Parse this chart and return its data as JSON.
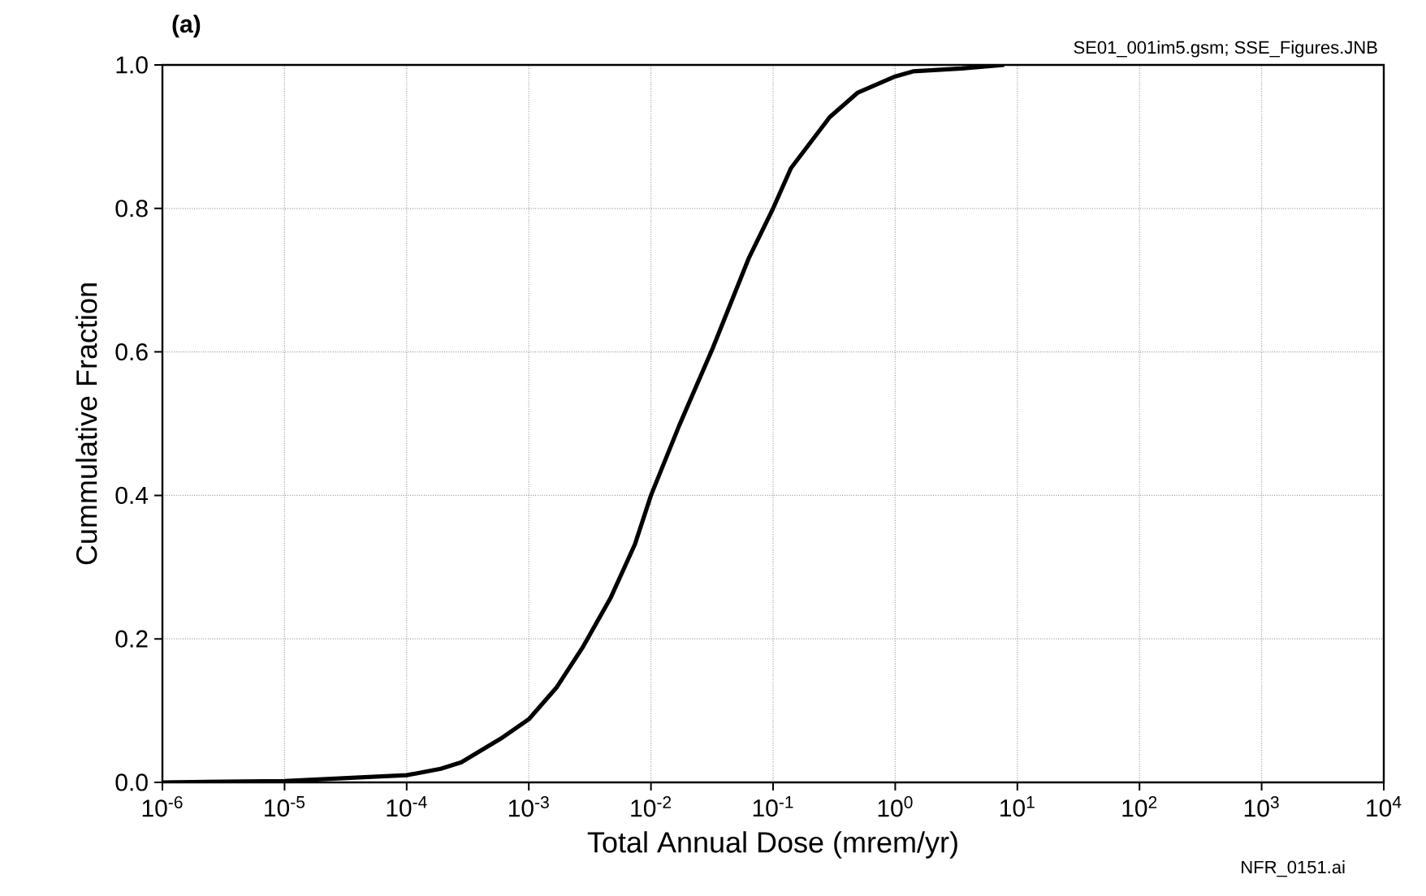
{
  "chart_data": {
    "type": "line",
    "title": "(a)",
    "xlabel": "Total Annual Dose (mrem/yr)",
    "ylabel": "Cummulative Fraction",
    "annotations": [
      "SE01_001im5.gsm; SSE_Figures.JNB",
      "NFR_0151.ai"
    ],
    "log": "x",
    "grid": true,
    "marker": "none",
    "line_style": "solid",
    "xlim": [
      1e-06,
      10000.0
    ],
    "ylim": [
      0,
      1
    ],
    "xticks": [
      {
        "value": 1e-06,
        "label": "10$^{-6}$"
      },
      {
        "value": 1e-05,
        "label": "10$^{-5}$"
      },
      {
        "value": 0.0001,
        "label": "10$^{-4}$"
      },
      {
        "value": 0.001,
        "label": "10$^{-3}$"
      },
      {
        "value": 0.01,
        "label": "10$^{-2}$"
      },
      {
        "value": 0.1,
        "label": "10$^{-1}$"
      },
      {
        "value": 1,
        "label": "10$^{0}$"
      },
      {
        "value": 10,
        "label": "10$^{1}$"
      },
      {
        "value": 100,
        "label": "10$^{2}$"
      },
      {
        "value": 1000,
        "label": "10$^{3}$"
      },
      {
        "value": 10000,
        "label": "10$^{4}$"
      }
    ],
    "yticks": [
      {
        "value": 0,
        "label": "0.0"
      },
      {
        "value": 0.2,
        "label": "0.2"
      },
      {
        "value": 0.4,
        "label": "0.4"
      },
      {
        "value": 0.6,
        "label": "0.6"
      },
      {
        "value": 0.8,
        "label": "0.8"
      },
      {
        "value": 1,
        "label": "1.0"
      }
    ],
    "x": [
      1e-06,
      1e-05,
      0.0001,
      0.00019,
      0.00028,
      0.00059,
      0.001,
      0.0017,
      0.0028,
      0.0047,
      0.0074,
      0.01,
      0.017,
      0.032,
      0.063,
      0.1,
      0.14,
      0.29,
      0.49,
      1,
      1.4,
      3.5,
      7.8
    ],
    "series": [
      {
        "color": "#000000",
        "values": [
          0,
          0.002,
          0.01,
          0.019,
          0.028,
          0.061,
          0.088,
          0.133,
          0.19,
          0.258,
          0.332,
          0.4,
          0.497,
          0.605,
          0.73,
          0.8,
          0.856,
          0.927,
          0.961,
          0.984,
          0.991,
          0.995,
          1.0
        ]
      }
    ]
  }
}
